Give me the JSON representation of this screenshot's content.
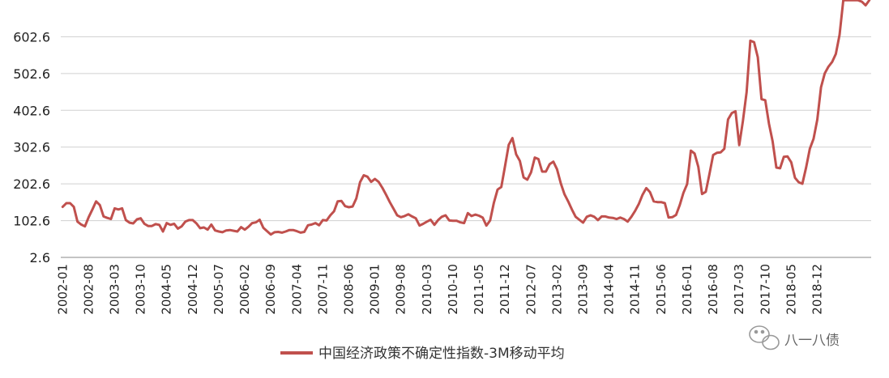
{
  "chart_data": {
    "type": "line",
    "title": "",
    "xlabel": "",
    "ylabel": "",
    "ylim": [
      2.6,
      702.6
    ],
    "y_ticks": [
      "2.6",
      "102.6",
      "202.6",
      "302.6",
      "402.6",
      "502.6",
      "602.6"
    ],
    "x_tick_labels": [
      "2002-01",
      "2002-08",
      "2003-03",
      "2003-10",
      "2004-05",
      "2004-12",
      "2005-07",
      "2006-02",
      "2006-09",
      "2007-04",
      "2007-11",
      "2008-06",
      "2009-01",
      "2009-08",
      "2010-03",
      "2010-10",
      "2011-05",
      "2011-12",
      "2012-07",
      "2013-02",
      "2013-09",
      "2014-04",
      "2014-11",
      "2015-06",
      "2016-01",
      "2016-08",
      "2017-03",
      "2017-10",
      "2018-05",
      "2018-12"
    ],
    "grid": true,
    "legend_position": "bottom-center",
    "series": [
      {
        "name": "中国经济政策不确定性指数-3M移动平均",
        "color": "#c0504d",
        "values": [
          140,
          150,
          150,
          140,
          100,
          92,
          87,
          112,
          133,
          155,
          145,
          114,
          110,
          107,
          136,
          133,
          136,
          104,
          97,
          95,
          106,
          109,
          94,
          88,
          88,
          93,
          91,
          73,
          96,
          91,
          94,
          81,
          87,
          100,
          104,
          104,
          95,
          82,
          84,
          78,
          92,
          76,
          73,
          71,
          76,
          77,
          75,
          73,
          85,
          78,
          86,
          96,
          98,
          105,
          83,
          74,
          65,
          71,
          72,
          70,
          73,
          77,
          77,
          74,
          70,
          72,
          90,
          92,
          96,
          90,
          104,
          103,
          117,
          128,
          155,
          156,
          142,
          139,
          141,
          163,
          207,
          226,
          222,
          208,
          216,
          208,
          192,
          173,
          153,
          135,
          117,
          112,
          115,
          120,
          114,
          109,
          89,
          94,
          100,
          105,
          91,
          104,
          113,
          117,
          103,
          102,
          102,
          98,
          96,
          123,
          115,
          119,
          116,
          111,
          89,
          103,
          151,
          187,
          194,
          251,
          309,
          327,
          283,
          265,
          220,
          214,
          234,
          274,
          270,
          236,
          236,
          256,
          263,
          242,
          204,
          174,
          155,
          133,
          113,
          105,
          97,
          113,
          117,
          113,
          104,
          114,
          114,
          111,
          110,
          107,
          111,
          107,
          100,
          113,
          129,
          148,
          173,
          191,
          180,
          155,
          153,
          153,
          150,
          111,
          112,
          118,
          145,
          178,
          202,
          293,
          285,
          249,
          175,
          181,
          230,
          281,
          287,
          288,
          298,
          378,
          395,
          400,
          308,
          373,
          452,
          592,
          588,
          547,
          433,
          430,
          366,
          318,
          247,
          245,
          276,
          277,
          261,
          219,
          207,
          203,
          247,
          298,
          325,
          377,
          465,
          503,
          521,
          534,
          556,
          608,
          702,
          702,
          702,
          702,
          702,
          698,
          688,
          702
        ]
      }
    ],
    "watermark": "八一八债"
  }
}
